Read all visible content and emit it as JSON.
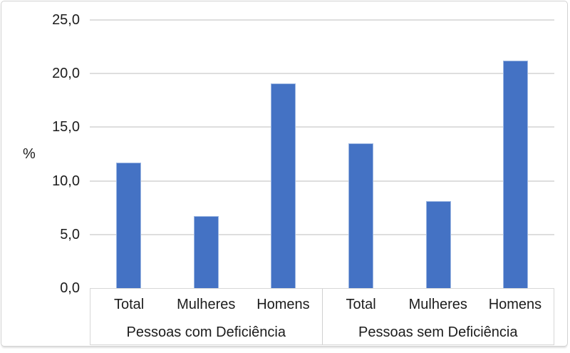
{
  "chart_data": {
    "type": "bar",
    "title": "",
    "xlabel": "",
    "ylabel": "%",
    "ylim": [
      0,
      25
    ],
    "ytick_values": [
      0,
      5,
      10,
      15,
      20,
      25
    ],
    "ytick_labels": [
      "0,0",
      "5,0",
      "10,0",
      "15,0",
      "20,0",
      "25,0"
    ],
    "grid": true,
    "legend": "none",
    "bar_color": "#4472C4",
    "bar_border_color": "#9DB7E2",
    "gridline_color": "#DEDEDE",
    "groups": [
      {
        "label": "Pessoas com Deficiência",
        "categories": [
          "Total",
          "Mulheres",
          "Homens"
        ],
        "values": [
          11.7,
          6.7,
          19.1
        ]
      },
      {
        "label": "Pessoas sem Deficiência",
        "categories": [
          "Total",
          "Mulheres",
          "Homens"
        ],
        "values": [
          13.5,
          8.1,
          21.2
        ]
      }
    ]
  }
}
